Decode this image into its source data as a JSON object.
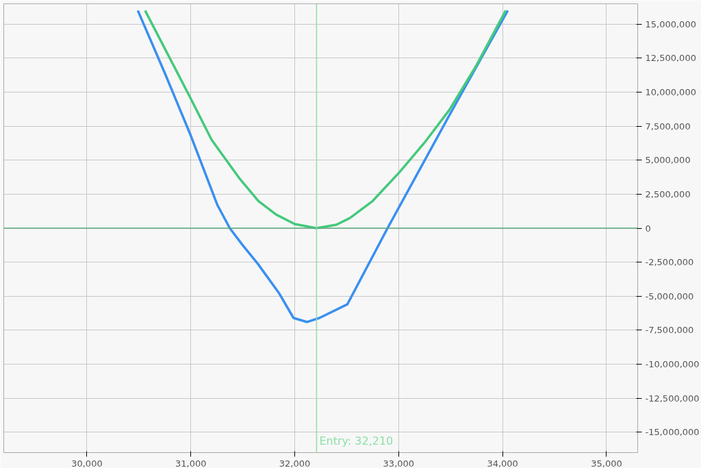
{
  "chart_data": {
    "type": "line",
    "series": [
      {
        "color": "#3a8ff0",
        "x": [
          30490,
          30750,
          31000,
          31256,
          31375,
          31494,
          31643,
          31851,
          31988,
          32119,
          32238,
          32506,
          32893,
          33488,
          34050
        ],
        "values": [
          16000000,
          11400000,
          6800000,
          1700000,
          0,
          -1200000,
          -2600000,
          -4800000,
          -6600000,
          -6900000,
          -6600000,
          -5600000,
          0,
          8300000,
          16000000
        ]
      },
      {
        "color": "#45c97c",
        "x": [
          30560,
          30988,
          31200,
          31464,
          31650,
          31821,
          32000,
          32208,
          32400,
          32536,
          32750,
          33012,
          33250,
          33488,
          33750,
          34030
        ],
        "values": [
          16000000,
          9700000,
          6500000,
          3700000,
          2000000,
          1000000,
          300000,
          0,
          250000,
          770000,
          2000000,
          4150000,
          6300000,
          8700000,
          12000000,
          16000000
        ]
      }
    ],
    "xlim": [
      29200,
      35300
    ],
    "ylim": [
      -16500000,
      16500000
    ],
    "xticks": [
      {
        "value": 30000,
        "label": "30,000"
      },
      {
        "value": 31000,
        "label": "31,000"
      },
      {
        "value": 32000,
        "label": "32,000"
      },
      {
        "value": 33000,
        "label": "33,000"
      },
      {
        "value": 34000,
        "label": "34,000"
      },
      {
        "value": 35000,
        "label": "35,000"
      }
    ],
    "yticks": [
      {
        "value": -15000000,
        "label": "-15,000,000"
      },
      {
        "value": -12500000,
        "label": "-12,500,000"
      },
      {
        "value": -10000000,
        "label": "-10,000,000"
      },
      {
        "value": -7500000,
        "label": "-7,500,000"
      },
      {
        "value": -5000000,
        "label": "-5,000,000"
      },
      {
        "value": -2500000,
        "label": "-2,500,000"
      },
      {
        "value": 0,
        "label": "0"
      },
      {
        "value": 2500000,
        "label": "2,500,000"
      },
      {
        "value": 5000000,
        "label": "5,000,000"
      },
      {
        "value": 7500000,
        "label": "7,500,000"
      },
      {
        "value": 10000000,
        "label": "10,000,000"
      },
      {
        "value": 12500000,
        "label": "12,500,000"
      },
      {
        "value": 15000000,
        "label": "15,000,000"
      }
    ],
    "grid": true,
    "marker": "none",
    "line_style": "solid",
    "ref_lines": [
      {
        "axis": "y",
        "value": 0,
        "color": "#5aa97c"
      },
      {
        "axis": "x",
        "value": 32210,
        "label": "Entry: 32,210",
        "color": "#8fe0a8"
      }
    ]
  }
}
